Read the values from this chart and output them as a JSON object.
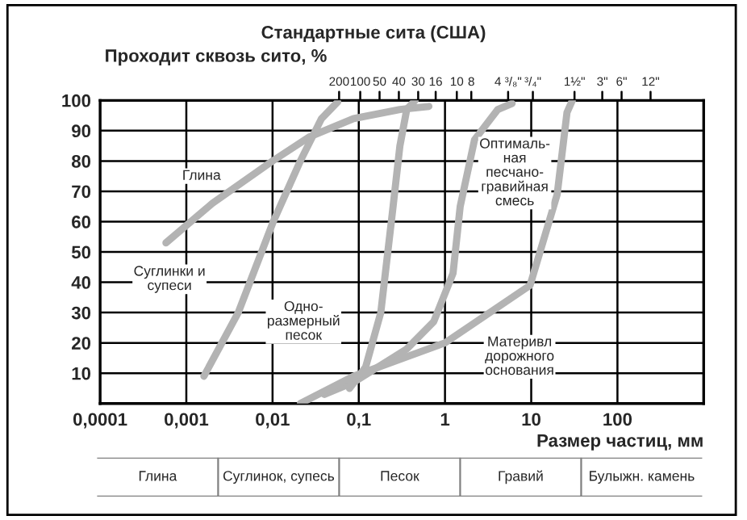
{
  "chart_data": {
    "type": "line",
    "x2label": "Стандартные сита (США)",
    "ylabel": "Проходит сквозь сито, %",
    "xlabel": "Размер частиц, мм",
    "log": "x",
    "xlim": [
      0.0001,
      1000
    ],
    "xticks": [
      {
        "value": 0.0001,
        "label": "0,0001"
      },
      {
        "value": 0.001,
        "label": "0,001"
      },
      {
        "value": 0.01,
        "label": "0,01"
      },
      {
        "value": 0.1,
        "label": "0,1"
      },
      1,
      10,
      100,
      {
        "value": 1000,
        "label": null
      }
    ],
    "ylim": [
      0,
      100
    ],
    "yticks": [
      10,
      20,
      30,
      40,
      50,
      60,
      70,
      80,
      90,
      100
    ],
    "grid": true,
    "series": [
      {
        "color": "#b3b3b3",
        "x": [
          0.00058,
          0.002,
          0.01,
          0.027,
          0.087,
          0.3,
          0.65
        ],
        "values": [
          53,
          66,
          80,
          88,
          94,
          97,
          98
        ]
      },
      {
        "color": "#b3b3b3",
        "x": [
          0.0016,
          0.004,
          0.0102,
          0.021,
          0.037,
          0.057
        ],
        "values": [
          9,
          30,
          60,
          80,
          94,
          99.5
        ]
      },
      {
        "color": "#b3b3b3",
        "x": [
          0.078,
          0.12,
          0.18,
          0.25,
          0.3,
          0.36,
          0.45
        ],
        "values": [
          5,
          12,
          30,
          65,
          85,
          97,
          100
        ]
      },
      {
        "color": "#b3b3b3",
        "x": [
          0.04,
          0.087,
          0.36,
          0.74,
          1.24,
          1.5,
          2.2,
          4.1,
          6
        ],
        "values": [
          3,
          7,
          18,
          27,
          43,
          65,
          87,
          97,
          99
        ]
      },
      {
        "color": "#b3b3b3",
        "x": [
          0.021,
          0.087,
          1,
          9.7,
          20,
          26,
          30
        ],
        "values": [
          0,
          9,
          20,
          39,
          69,
          96,
          100
        ]
      }
    ],
    "annotations": [
      "Глина",
      "Суглинки и\nсупеси",
      "Одно-\nразмерный\nпесок",
      "Оптималь-\nная\nпесчано-\nгравийная\nсмесь",
      "Материвл\nдорожного\nоснования",
      "200",
      "100",
      "50",
      "40",
      "30",
      "16",
      "10",
      "8",
      "4 ³/₈\"",
      "³/₄\"",
      "1½\"",
      "3\"",
      "6\"",
      "12\"",
      "Глина",
      "Суглинок, супесь",
      "Песок",
      "Гравий",
      "Булыжн. камень"
    ]
  }
}
